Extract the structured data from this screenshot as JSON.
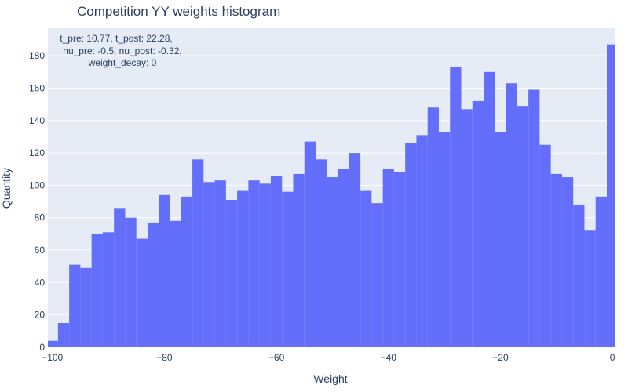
{
  "chart_data": {
    "type": "bar",
    "title": "Competition YY weights histogram",
    "xlabel": "Weight",
    "ylabel": "Quantity",
    "annotation_lines": [
      "t_pre: 10.77, t_post: 22.28,",
      "nu_pre: -0.5, nu_post: -0.32,",
      "weight_decay: 0"
    ],
    "xlim": [
      -100.8,
      0.4
    ],
    "ylim": [
      0,
      197
    ],
    "x_ticks": [
      -100,
      -80,
      -60,
      -40,
      -20,
      0
    ],
    "x_tick_labels": [
      "−100",
      "−80",
      "−60",
      "−40",
      "−20",
      "0"
    ],
    "y_ticks": [
      0,
      20,
      40,
      60,
      80,
      100,
      120,
      140,
      160,
      180
    ],
    "y_tick_labels": [
      "0",
      "20",
      "40",
      "60",
      "80",
      "100",
      "120",
      "140",
      "160",
      "180"
    ],
    "bin_start": -101,
    "bin_width": 2,
    "values": [
      4,
      15,
      51,
      49,
      70,
      71,
      86,
      80,
      67,
      77,
      94,
      78,
      93,
      116,
      102,
      103,
      91,
      97,
      103,
      101,
      106,
      96,
      107,
      127,
      116,
      105,
      110,
      120,
      97,
      89,
      110,
      108,
      126,
      131,
      148,
      133,
      173,
      147,
      152,
      170,
      133,
      163,
      149,
      159,
      125,
      107,
      105,
      88,
      72,
      93,
      187
    ],
    "grid": true,
    "legend": "none",
    "colors": {
      "bar": "#636efa",
      "plot_bg": "#e5ecf6",
      "grid": "#ffffff",
      "text": "#2a3f5f"
    }
  }
}
